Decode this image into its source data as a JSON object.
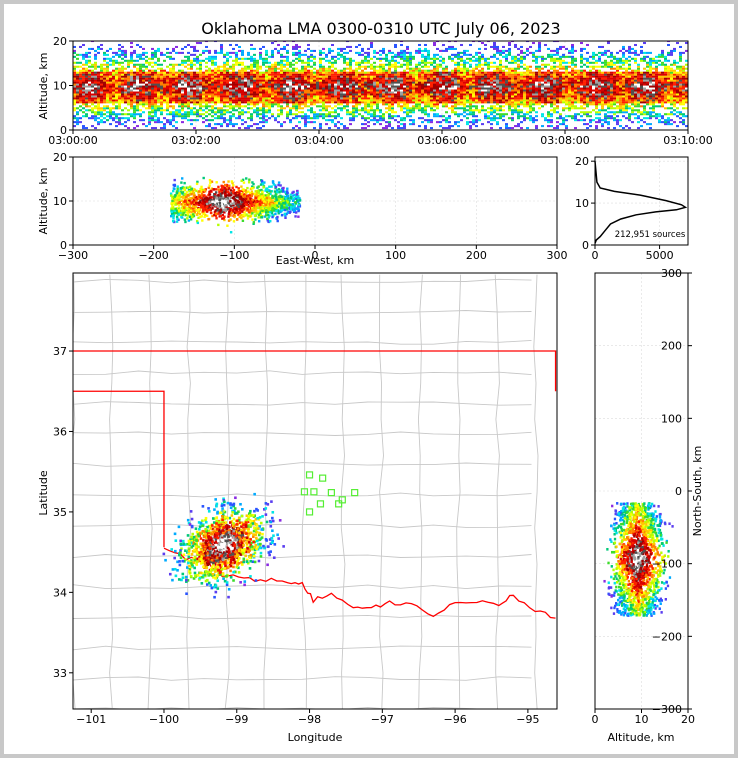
{
  "chart_data": [
    {
      "type": "heatmap",
      "name": "time-altitude",
      "title": "Oklahoma LMA 0300-0310 UTC July 06, 2023",
      "xlabel": "",
      "ylabel": "Altitude, km",
      "xticks": [
        "03:00:00",
        "03:02:00",
        "03:04:00",
        "03:06:00",
        "03:08:00",
        "03:10:00"
      ],
      "yticks": [
        0,
        10,
        20
      ],
      "xlim": [
        "03:00:00",
        "03:10:00"
      ],
      "ylim": [
        0,
        20
      ],
      "dense_band_km": [
        6,
        13
      ],
      "max_altitude_km": 20
    },
    {
      "type": "heatmap",
      "name": "east-west-altitude",
      "xlabel": "East-West, km",
      "ylabel": "Altitude, km",
      "xticks": [
        -300,
        -200,
        -100,
        0,
        100,
        200,
        300
      ],
      "yticks": [
        0,
        10,
        20
      ],
      "xlim": [
        -300,
        300
      ],
      "ylim": [
        0,
        20
      ],
      "cluster_x_km": [
        -180,
        -20
      ],
      "core_x_km": -115,
      "core_alt_km": 10
    },
    {
      "type": "line",
      "name": "altitude-histogram",
      "xlabel": "",
      "xticks": [
        0,
        5000
      ],
      "yticks": [
        0,
        10,
        20
      ],
      "xlim": [
        0,
        7200
      ],
      "ylim": [
        0,
        21
      ],
      "annotation": "212,951 sources",
      "points": [
        [
          0,
          20
        ],
        [
          150,
          15
        ],
        [
          400,
          13.6
        ],
        [
          1500,
          12.8
        ],
        [
          3500,
          11.9
        ],
        [
          5500,
          10.6
        ],
        [
          6700,
          9.6
        ],
        [
          7000,
          9.0
        ],
        [
          6300,
          8.4
        ],
        [
          4700,
          7.9
        ],
        [
          3200,
          7.2
        ],
        [
          2000,
          6.2
        ],
        [
          1200,
          5.0
        ],
        [
          800,
          3.5
        ],
        [
          400,
          2.0
        ],
        [
          100,
          1.2
        ],
        [
          0,
          0.4
        ]
      ]
    },
    {
      "type": "map",
      "name": "plan-view",
      "xlabel": "Longitude",
      "ylabel": "Latitude",
      "xticks": [
        -101,
        -100,
        -99,
        -98,
        -97,
        -96,
        -95
      ],
      "yticks": [
        33,
        34,
        35,
        36,
        37
      ],
      "xlim": [
        -101.25,
        -94.6
      ],
      "ylim": [
        32.55,
        37.97
      ],
      "storm_center": [
        -99.2,
        34.6
      ],
      "stations": [
        [
          -98.0,
          35.46
        ],
        [
          -97.82,
          35.42
        ],
        [
          -97.94,
          35.25
        ],
        [
          -98.07,
          35.25
        ],
        [
          -97.7,
          35.24
        ],
        [
          -97.55,
          35.15
        ],
        [
          -97.38,
          35.24
        ],
        [
          -97.85,
          35.1
        ],
        [
          -98.0,
          35.0
        ],
        [
          -97.6,
          35.1
        ]
      ],
      "border_color": "#ff0000",
      "county_color": "#c8c8c8"
    },
    {
      "type": "heatmap",
      "name": "altitude-north-south",
      "xlabel": "Altitude, km",
      "ylabel": "North-South, km",
      "xticks": [
        0,
        10,
        20
      ],
      "yticks": [
        300,
        200,
        100,
        0,
        -100,
        -200,
        -300
      ],
      "xlim": [
        0,
        20
      ],
      "ylim": [
        -300,
        300
      ],
      "cluster_ns_km": [
        -170,
        -15
      ],
      "core_alt_km": 9
    }
  ]
}
